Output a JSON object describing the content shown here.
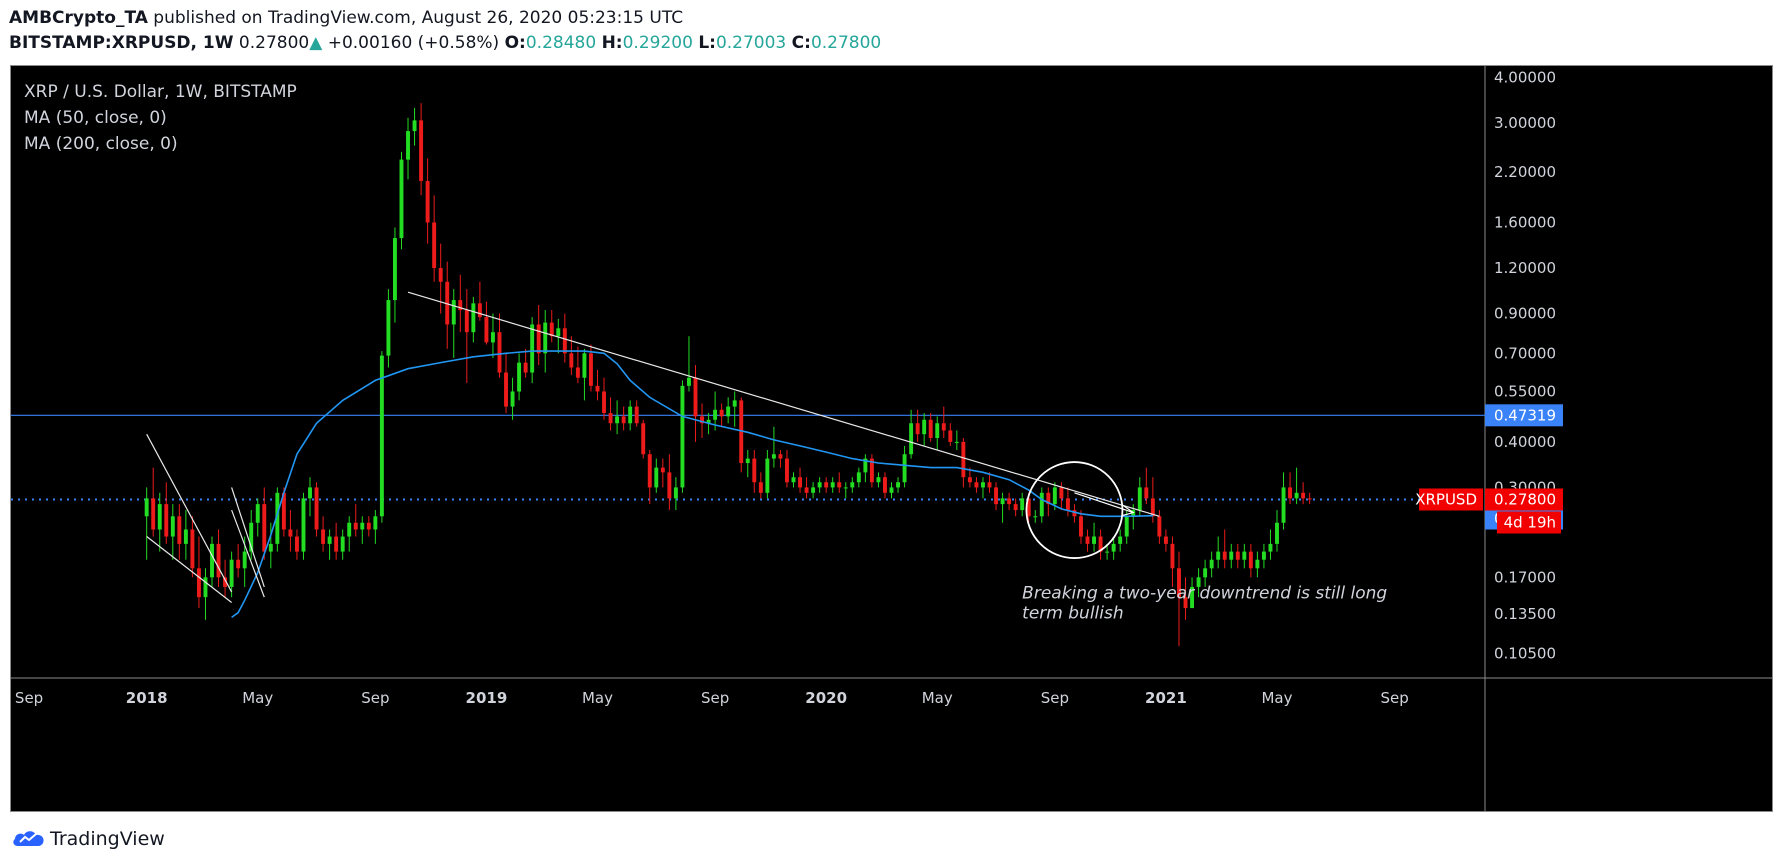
{
  "header": {
    "author": "AMBCrypto_TA",
    "published_text": " published on TradingView.com, August 26, 2020 05:23:15 UTC",
    "symbol": "BITSTAMP:XRPUSD, 1W",
    "last": "0.27800",
    "change": "+0.00160 (+0.58%)",
    "open_label": "O:",
    "open": "0.28480",
    "high_label": "H:",
    "high": "0.29200",
    "low_label": "L:",
    "low": "0.27003",
    "close_label": "C:",
    "close": "0.27800"
  },
  "legend": {
    "title": "XRP / U.S. Dollar, 1W, BITSTAMP",
    "ma50": "MA (50, close, 0)",
    "ma200": "MA (200, close, 0)"
  },
  "annotation": {
    "line1": "Breaking a two-year downtrend is still long",
    "line2": "term bullish"
  },
  "price_labels": {
    "symbol_badge": "XRPUSD",
    "last_price": "0.27800",
    "countdown": "4d 19h",
    "resistance": "0.47319",
    "support": "0.24652"
  },
  "footer": {
    "brand": "TradingView"
  },
  "colors": {
    "up": "#22dd22",
    "down": "#ee1b1b",
    "ma": "#2196f3",
    "hline": "#3a82f7",
    "badge_red": "#f20000",
    "badge_blue": "#3a82f7"
  },
  "chart_data": {
    "type": "candlestick",
    "symbol": "XRPUSD",
    "interval": "1W",
    "y_scale": "log",
    "ylim": [
      0.09,
      4.3
    ],
    "y_ticks": [
      "4.00000",
      "3.00000",
      "2.20000",
      "1.60000",
      "1.20000",
      "0.90000",
      "0.70000",
      "0.55000",
      "0.40000",
      "0.30000",
      "0.17000",
      "0.13500",
      "0.10500"
    ],
    "x_ticks": [
      {
        "label": "Sep",
        "t": -18
      },
      {
        "label": "2018",
        "t": 0
      },
      {
        "label": "May",
        "t": 17
      },
      {
        "label": "Sep",
        "t": 35
      },
      {
        "label": "2019",
        "t": 52
      },
      {
        "label": "May",
        "t": 69
      },
      {
        "label": "Sep",
        "t": 87
      },
      {
        "label": "2020",
        "t": 104
      },
      {
        "label": "May",
        "t": 121
      },
      {
        "label": "Sep",
        "t": 139
      },
      {
        "label": "2021",
        "t": 156
      },
      {
        "label": "May",
        "t": 173
      },
      {
        "label": "Sep",
        "t": 191
      }
    ],
    "candles": [
      [
        0.25,
        0.3,
        0.19,
        0.28
      ],
      [
        0.28,
        0.34,
        0.22,
        0.23
      ],
      [
        0.23,
        0.29,
        0.2,
        0.27
      ],
      [
        0.27,
        0.31,
        0.21,
        0.22
      ],
      [
        0.22,
        0.27,
        0.19,
        0.25
      ],
      [
        0.25,
        0.27,
        0.19,
        0.21
      ],
      [
        0.21,
        0.26,
        0.19,
        0.23
      ],
      [
        0.23,
        0.25,
        0.17,
        0.18
      ],
      [
        0.18,
        0.22,
        0.14,
        0.15
      ],
      [
        0.15,
        0.18,
        0.13,
        0.17
      ],
      [
        0.17,
        0.22,
        0.16,
        0.21
      ],
      [
        0.21,
        0.23,
        0.16,
        0.17
      ],
      [
        0.17,
        0.19,
        0.15,
        0.16
      ],
      [
        0.16,
        0.2,
        0.15,
        0.19
      ],
      [
        0.19,
        0.21,
        0.17,
        0.18
      ],
      [
        0.18,
        0.22,
        0.16,
        0.2
      ],
      [
        0.2,
        0.26,
        0.19,
        0.24
      ],
      [
        0.24,
        0.28,
        0.22,
        0.27
      ],
      [
        0.27,
        0.3,
        0.19,
        0.2
      ],
      [
        0.2,
        0.24,
        0.18,
        0.21
      ],
      [
        0.21,
        0.3,
        0.2,
        0.29
      ],
      [
        0.29,
        0.3,
        0.22,
        0.23
      ],
      [
        0.23,
        0.26,
        0.2,
        0.22
      ],
      [
        0.22,
        0.23,
        0.19,
        0.2
      ],
      [
        0.2,
        0.29,
        0.19,
        0.28
      ],
      [
        0.28,
        0.32,
        0.25,
        0.3
      ],
      [
        0.3,
        0.31,
        0.22,
        0.23
      ],
      [
        0.23,
        0.25,
        0.2,
        0.21
      ],
      [
        0.21,
        0.23,
        0.19,
        0.22
      ],
      [
        0.22,
        0.24,
        0.19,
        0.2
      ],
      [
        0.2,
        0.23,
        0.19,
        0.22
      ],
      [
        0.22,
        0.25,
        0.2,
        0.24
      ],
      [
        0.24,
        0.27,
        0.22,
        0.23
      ],
      [
        0.23,
        0.25,
        0.21,
        0.24
      ],
      [
        0.24,
        0.25,
        0.22,
        0.23
      ],
      [
        0.23,
        0.26,
        0.21,
        0.25
      ],
      [
        0.25,
        0.71,
        0.24,
        0.69
      ],
      [
        0.69,
        1.05,
        0.64,
        0.98
      ],
      [
        0.98,
        1.55,
        0.85,
        1.45
      ],
      [
        1.45,
        2.5,
        1.35,
        2.38
      ],
      [
        2.38,
        3.1,
        2.1,
        2.85
      ],
      [
        2.85,
        3.3,
        2.6,
        3.05
      ],
      [
        3.05,
        3.4,
        1.9,
        2.08
      ],
      [
        2.08,
        2.4,
        1.4,
        1.6
      ],
      [
        1.6,
        1.9,
        1.1,
        1.2
      ],
      [
        1.2,
        1.4,
        0.9,
        1.1
      ],
      [
        1.1,
        1.25,
        0.72,
        0.84
      ],
      [
        0.84,
        1.05,
        0.68,
        0.98
      ],
      [
        0.98,
        1.15,
        0.8,
        0.92
      ],
      [
        0.92,
        1.05,
        0.58,
        0.8
      ],
      [
        0.8,
        1.0,
        0.75,
        0.96
      ],
      [
        0.96,
        1.1,
        0.86,
        0.88
      ],
      [
        0.88,
        0.97,
        0.74,
        0.75
      ],
      [
        0.75,
        0.9,
        0.68,
        0.8
      ],
      [
        0.8,
        0.9,
        0.6,
        0.62
      ],
      [
        0.62,
        0.7,
        0.48,
        0.5
      ],
      [
        0.5,
        0.6,
        0.46,
        0.55
      ],
      [
        0.55,
        0.7,
        0.52,
        0.66
      ],
      [
        0.66,
        0.72,
        0.6,
        0.62
      ],
      [
        0.62,
        0.88,
        0.58,
        0.84
      ],
      [
        0.84,
        0.95,
        0.65,
        0.7
      ],
      [
        0.7,
        0.92,
        0.62,
        0.85
      ],
      [
        0.85,
        0.92,
        0.75,
        0.78
      ],
      [
        0.78,
        0.87,
        0.7,
        0.82
      ],
      [
        0.82,
        0.9,
        0.66,
        0.7
      ],
      [
        0.7,
        0.78,
        0.61,
        0.64
      ],
      [
        0.64,
        0.73,
        0.58,
        0.6
      ],
      [
        0.6,
        0.72,
        0.52,
        0.7
      ],
      [
        0.7,
        0.74,
        0.55,
        0.57
      ],
      [
        0.57,
        0.63,
        0.52,
        0.55
      ],
      [
        0.55,
        0.6,
        0.46,
        0.48
      ],
      [
        0.48,
        0.53,
        0.43,
        0.45
      ],
      [
        0.45,
        0.52,
        0.42,
        0.47
      ],
      [
        0.47,
        0.5,
        0.43,
        0.45
      ],
      [
        0.45,
        0.52,
        0.43,
        0.5
      ],
      [
        0.5,
        0.52,
        0.44,
        0.45
      ],
      [
        0.45,
        0.46,
        0.36,
        0.37
      ],
      [
        0.37,
        0.38,
        0.27,
        0.3
      ],
      [
        0.3,
        0.36,
        0.29,
        0.34
      ],
      [
        0.34,
        0.36,
        0.3,
        0.33
      ],
      [
        0.33,
        0.37,
        0.26,
        0.28
      ],
      [
        0.28,
        0.32,
        0.26,
        0.3
      ],
      [
        0.3,
        0.59,
        0.29,
        0.57
      ],
      [
        0.57,
        0.78,
        0.55,
        0.6
      ],
      [
        0.6,
        0.65,
        0.4,
        0.47
      ],
      [
        0.47,
        0.51,
        0.41,
        0.45
      ],
      [
        0.45,
        0.48,
        0.42,
        0.46
      ],
      [
        0.46,
        0.55,
        0.43,
        0.49
      ],
      [
        0.49,
        0.51,
        0.44,
        0.47
      ],
      [
        0.47,
        0.53,
        0.45,
        0.5
      ],
      [
        0.5,
        0.55,
        0.44,
        0.52
      ],
      [
        0.52,
        0.53,
        0.33,
        0.35
      ],
      [
        0.35,
        0.38,
        0.32,
        0.36
      ],
      [
        0.36,
        0.38,
        0.29,
        0.31
      ],
      [
        0.31,
        0.33,
        0.28,
        0.29
      ],
      [
        0.29,
        0.38,
        0.28,
        0.36
      ],
      [
        0.36,
        0.44,
        0.34,
        0.37
      ],
      [
        0.37,
        0.38,
        0.34,
        0.36
      ],
      [
        0.36,
        0.38,
        0.3,
        0.31
      ],
      [
        0.31,
        0.33,
        0.3,
        0.32
      ],
      [
        0.32,
        0.34,
        0.29,
        0.3
      ],
      [
        0.3,
        0.32,
        0.28,
        0.29
      ],
      [
        0.29,
        0.31,
        0.28,
        0.3
      ],
      [
        0.3,
        0.32,
        0.29,
        0.31
      ],
      [
        0.31,
        0.32,
        0.29,
        0.3
      ],
      [
        0.3,
        0.32,
        0.29,
        0.31
      ],
      [
        0.31,
        0.33,
        0.29,
        0.3
      ],
      [
        0.3,
        0.31,
        0.28,
        0.3
      ],
      [
        0.3,
        0.32,
        0.29,
        0.31
      ],
      [
        0.31,
        0.34,
        0.3,
        0.33
      ],
      [
        0.33,
        0.37,
        0.31,
        0.36
      ],
      [
        0.36,
        0.37,
        0.3,
        0.31
      ],
      [
        0.31,
        0.33,
        0.3,
        0.32
      ],
      [
        0.32,
        0.33,
        0.28,
        0.29
      ],
      [
        0.29,
        0.31,
        0.28,
        0.3
      ],
      [
        0.3,
        0.32,
        0.29,
        0.31
      ],
      [
        0.31,
        0.39,
        0.3,
        0.37
      ],
      [
        0.37,
        0.49,
        0.36,
        0.45
      ],
      [
        0.45,
        0.49,
        0.4,
        0.42
      ],
      [
        0.42,
        0.48,
        0.39,
        0.46
      ],
      [
        0.46,
        0.48,
        0.4,
        0.41
      ],
      [
        0.41,
        0.47,
        0.38,
        0.45
      ],
      [
        0.45,
        0.5,
        0.41,
        0.43
      ],
      [
        0.43,
        0.45,
        0.39,
        0.4
      ],
      [
        0.4,
        0.43,
        0.38,
        0.4
      ],
      [
        0.4,
        0.41,
        0.3,
        0.32
      ],
      [
        0.32,
        0.34,
        0.3,
        0.31
      ],
      [
        0.31,
        0.32,
        0.29,
        0.3
      ],
      [
        0.3,
        0.32,
        0.28,
        0.31
      ],
      [
        0.31,
        0.33,
        0.29,
        0.3
      ],
      [
        0.3,
        0.31,
        0.26,
        0.27
      ],
      [
        0.27,
        0.29,
        0.24,
        0.28
      ],
      [
        0.28,
        0.29,
        0.26,
        0.27
      ],
      [
        0.27,
        0.28,
        0.25,
        0.26
      ],
      [
        0.26,
        0.29,
        0.25,
        0.28
      ],
      [
        0.28,
        0.29,
        0.24,
        0.25
      ],
      [
        0.25,
        0.26,
        0.24,
        0.25
      ],
      [
        0.25,
        0.3,
        0.24,
        0.29
      ],
      [
        0.29,
        0.3,
        0.25,
        0.27
      ],
      [
        0.27,
        0.31,
        0.26,
        0.3
      ],
      [
        0.3,
        0.31,
        0.26,
        0.28
      ],
      [
        0.28,
        0.3,
        0.25,
        0.26
      ],
      [
        0.26,
        0.27,
        0.24,
        0.25
      ],
      [
        0.25,
        0.26,
        0.21,
        0.22
      ],
      [
        0.22,
        0.23,
        0.2,
        0.21
      ],
      [
        0.21,
        0.24,
        0.2,
        0.22
      ],
      [
        0.22,
        0.23,
        0.19,
        0.2
      ],
      [
        0.2,
        0.21,
        0.19,
        0.2
      ],
      [
        0.2,
        0.22,
        0.19,
        0.21
      ],
      [
        0.21,
        0.23,
        0.2,
        0.22
      ],
      [
        0.22,
        0.26,
        0.21,
        0.25
      ],
      [
        0.25,
        0.27,
        0.23,
        0.26
      ],
      [
        0.26,
        0.32,
        0.25,
        0.3
      ],
      [
        0.3,
        0.34,
        0.27,
        0.28
      ],
      [
        0.28,
        0.32,
        0.24,
        0.25
      ],
      [
        0.25,
        0.26,
        0.21,
        0.22
      ],
      [
        0.22,
        0.23,
        0.2,
        0.21
      ],
      [
        0.21,
        0.22,
        0.16,
        0.18
      ],
      [
        0.18,
        0.2,
        0.11,
        0.15
      ],
      [
        0.15,
        0.17,
        0.13,
        0.14
      ],
      [
        0.14,
        0.17,
        0.14,
        0.16
      ],
      [
        0.16,
        0.18,
        0.15,
        0.17
      ],
      [
        0.17,
        0.19,
        0.16,
        0.18
      ],
      [
        0.18,
        0.2,
        0.17,
        0.19
      ],
      [
        0.19,
        0.22,
        0.18,
        0.2
      ],
      [
        0.2,
        0.23,
        0.18,
        0.19
      ],
      [
        0.19,
        0.21,
        0.18,
        0.2
      ],
      [
        0.2,
        0.21,
        0.18,
        0.19
      ],
      [
        0.19,
        0.21,
        0.18,
        0.2
      ],
      [
        0.2,
        0.21,
        0.17,
        0.18
      ],
      [
        0.18,
        0.2,
        0.17,
        0.19
      ],
      [
        0.19,
        0.21,
        0.18,
        0.2
      ],
      [
        0.2,
        0.23,
        0.19,
        0.21
      ],
      [
        0.21,
        0.26,
        0.2,
        0.24
      ],
      [
        0.24,
        0.33,
        0.23,
        0.3
      ],
      [
        0.3,
        0.33,
        0.27,
        0.28
      ],
      [
        0.28,
        0.34,
        0.27,
        0.29
      ],
      [
        0.29,
        0.31,
        0.27,
        0.28
      ],
      [
        0.28,
        0.29,
        0.27,
        0.278
      ]
    ],
    "ma50": [
      [
        13,
        0.132
      ],
      [
        14,
        0.136
      ],
      [
        15,
        0.147
      ],
      [
        17,
        0.175
      ],
      [
        19,
        0.222
      ],
      [
        21,
        0.29
      ],
      [
        23,
        0.37
      ],
      [
        26,
        0.45
      ],
      [
        30,
        0.52
      ],
      [
        35,
        0.59
      ],
      [
        40,
        0.635
      ],
      [
        45,
        0.66
      ],
      [
        50,
        0.685
      ],
      [
        55,
        0.7
      ],
      [
        59,
        0.71
      ],
      [
        63,
        0.71
      ],
      [
        67,
        0.71
      ],
      [
        70,
        0.7
      ],
      [
        72,
        0.655
      ],
      [
        74,
        0.59
      ],
      [
        77,
        0.53
      ],
      [
        82,
        0.47
      ],
      [
        87,
        0.445
      ],
      [
        92,
        0.425
      ],
      [
        96,
        0.405
      ],
      [
        100,
        0.39
      ],
      [
        104,
        0.375
      ],
      [
        108,
        0.36
      ],
      [
        112,
        0.35
      ],
      [
        116,
        0.345
      ],
      [
        120,
        0.34
      ],
      [
        124,
        0.34
      ],
      [
        128,
        0.33
      ],
      [
        132,
        0.315
      ],
      [
        135,
        0.295
      ],
      [
        137,
        0.278
      ],
      [
        140,
        0.262
      ],
      [
        143,
        0.254
      ],
      [
        146,
        0.25
      ],
      [
        150,
        0.25
      ],
      [
        154,
        0.251
      ]
    ],
    "ma200": [],
    "trendlines": [
      {
        "from": [
          40,
          1.03
        ],
        "to": [
          155,
          0.25
        ]
      },
      {
        "from": [
          0,
          0.42
        ],
        "to": [
          13,
          0.155
        ]
      },
      {
        "from": [
          0,
          0.22
        ],
        "to": [
          13,
          0.145
        ]
      },
      {
        "from": [
          13,
          0.3
        ],
        "to": [
          18,
          0.16
        ]
      },
      {
        "from": [
          13,
          0.26
        ],
        "to": [
          18,
          0.15
        ]
      }
    ],
    "horizontal_lines": [
      0.47319,
      0.24652
    ]
  }
}
